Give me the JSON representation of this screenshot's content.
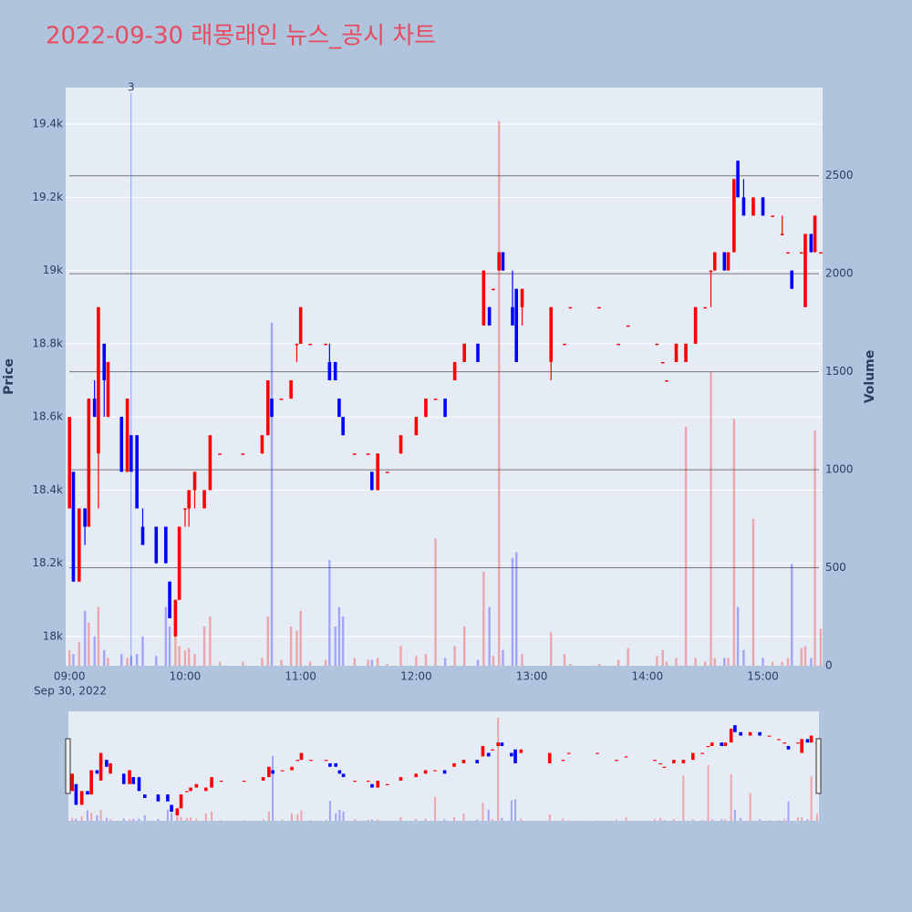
{
  "chart_data": {
    "type": "candlestick",
    "title": "2022-09-30 래몽래인 뉴스_공시 차트",
    "ylabel": "Price",
    "y2label": "Volume",
    "date_label": "Sep 30, 2022",
    "increasing_color": "#ff0000",
    "decreasing_color": "#0000ff",
    "annotation": {
      "x": "09:32",
      "text": "3"
    },
    "xlim": [
      "08:58",
      "15:31"
    ],
    "xticks": [
      "09:00",
      "10:00",
      "11:00",
      "12:00",
      "13:00",
      "14:00",
      "15:00"
    ],
    "ylim": [
      17920,
      19500
    ],
    "yticks": [
      {
        "value": 18000,
        "label": "18k"
      },
      {
        "value": 18200,
        "label": "18.2k"
      },
      {
        "value": 18400,
        "label": "18.4k"
      },
      {
        "value": 18600,
        "label": "18.6k"
      },
      {
        "value": 18800,
        "label": "18.8k"
      },
      {
        "value": 19000,
        "label": "19k"
      },
      {
        "value": 19200,
        "label": "19.2k"
      },
      {
        "value": 19400,
        "label": "19.4k"
      }
    ],
    "y2lim": [
      0,
      2950
    ],
    "y2ticks": [
      0,
      500,
      1000,
      1500,
      2000,
      2500
    ],
    "x": [
      "09:00",
      "09:02",
      "09:05",
      "09:08",
      "09:10",
      "09:13",
      "09:15",
      "09:18",
      "09:20",
      "09:27",
      "09:30",
      "09:32",
      "09:35",
      "09:38",
      "09:45",
      "09:50",
      "09:52",
      "09:55",
      "09:57",
      "10:00",
      "10:02",
      "10:05",
      "10:10",
      "10:13",
      "10:18",
      "10:30",
      "10:40",
      "10:43",
      "10:45",
      "10:50",
      "10:55",
      "10:58",
      "11:00",
      "11:05",
      "11:13",
      "11:15",
      "11:18",
      "11:20",
      "11:22",
      "11:28",
      "11:35",
      "11:37",
      "11:40",
      "11:45",
      "11:52",
      "12:00",
      "12:05",
      "12:10",
      "12:15",
      "12:20",
      "12:25",
      "12:32",
      "12:35",
      "12:38",
      "12:40",
      "12:43",
      "12:45",
      "12:50",
      "12:52",
      "12:55",
      "13:10",
      "13:17",
      "13:20",
      "13:35",
      "13:45",
      "13:50",
      "14:05",
      "14:08",
      "14:10",
      "14:15",
      "14:20",
      "14:25",
      "14:30",
      "14:33",
      "14:35",
      "14:40",
      "14:42",
      "14:45",
      "14:47",
      "14:50",
      "14:55",
      "15:00",
      "15:05",
      "15:10",
      "15:13",
      "15:15",
      "15:20",
      "15:22",
      "15:25",
      "15:27",
      "15:30"
    ],
    "open": [
      18350,
      18450,
      18150,
      18350,
      18300,
      18650,
      18500,
      18800,
      18600,
      18600,
      18450,
      18550,
      18550,
      18300,
      18300,
      18300,
      18150,
      18000,
      18100,
      18350,
      18350,
      18400,
      18350,
      18400,
      18500,
      18500,
      18500,
      18550,
      18650,
      18650,
      18650,
      18800,
      18800,
      18800,
      18800,
      18750,
      18750,
      18650,
      18600,
      18500,
      18500,
      18450,
      18400,
      18450,
      18500,
      18550,
      18600,
      18650,
      18650,
      18700,
      18750,
      18800,
      18850,
      18900,
      18950,
      19000,
      19050,
      18900,
      18950,
      18900,
      18750,
      18800,
      18900,
      18900,
      18800,
      18850,
      18800,
      18750,
      18700,
      18750,
      18750,
      18800,
      18900,
      19000,
      19000,
      19050,
      19000,
      19050,
      19300,
      19200,
      19150,
      19200,
      19150,
      19100,
      19050,
      19000,
      19050,
      18900,
      19100,
      19050,
      19050
    ],
    "high": [
      18600,
      18450,
      18350,
      18350,
      18650,
      18700,
      18900,
      18800,
      18750,
      18600,
      18650,
      18550,
      18550,
      18350,
      18300,
      18300,
      18150,
      18100,
      18300,
      18350,
      18400,
      18450,
      18400,
      18550,
      18500,
      18500,
      18550,
      18700,
      18650,
      18650,
      18700,
      18800,
      18900,
      18800,
      18800,
      18800,
      18750,
      18650,
      18600,
      18500,
      18500,
      18450,
      18500,
      18450,
      18550,
      18600,
      18650,
      18650,
      18650,
      18750,
      18800,
      18800,
      19000,
      18900,
      18950,
      19050,
      19050,
      19000,
      18950,
      18950,
      18900,
      18800,
      18900,
      18900,
      18800,
      18850,
      18800,
      18750,
      18700,
      18800,
      18800,
      18900,
      18900,
      19000,
      19050,
      19050,
      19050,
      19250,
      19300,
      19250,
      19200,
      19200,
      19150,
      19150,
      19050,
      19000,
      19050,
      19100,
      19100,
      19150,
      19050
    ],
    "low": [
      18350,
      18150,
      18150,
      18250,
      18300,
      18600,
      18350,
      18600,
      18600,
      18450,
      18450,
      18450,
      18350,
      18250,
      18200,
      18200,
      18050,
      18000,
      18100,
      18300,
      18300,
      18350,
      18350,
      18400,
      18500,
      18500,
      18500,
      18550,
      18600,
      18650,
      18650,
      18750,
      18800,
      18800,
      18800,
      18700,
      18700,
      18600,
      18550,
      18500,
      18500,
      18400,
      18400,
      18450,
      18500,
      18550,
      18600,
      18650,
      18600,
      18700,
      18750,
      18750,
      18850,
      18850,
      18950,
      19000,
      19000,
      18850,
      18750,
      18850,
      18700,
      18800,
      18900,
      18900,
      18800,
      18850,
      18800,
      18750,
      18700,
      18750,
      18750,
      18800,
      18900,
      18900,
      19000,
      19000,
      19000,
      19050,
      19200,
      19150,
      19150,
      19150,
      19150,
      19100,
      19050,
      18950,
      19050,
      18900,
      19050,
      19050,
      19050
    ],
    "close": [
      18600,
      18150,
      18350,
      18300,
      18650,
      18600,
      18900,
      18700,
      18750,
      18450,
      18650,
      18450,
      18350,
      18250,
      18200,
      18200,
      18050,
      18100,
      18300,
      18350,
      18400,
      18450,
      18400,
      18550,
      18500,
      18500,
      18550,
      18700,
      18600,
      18650,
      18700,
      18800,
      18900,
      18800,
      18800,
      18700,
      18700,
      18600,
      18550,
      18500,
      18500,
      18400,
      18500,
      18450,
      18550,
      18600,
      18650,
      18650,
      18600,
      18750,
      18800,
      18750,
      19000,
      18850,
      18950,
      19050,
      19000,
      18850,
      18750,
      18950,
      18900,
      18800,
      18900,
      18900,
      18800,
      18850,
      18800,
      18750,
      18700,
      18800,
      18800,
      18900,
      18900,
      19000,
      19050,
      19000,
      19050,
      19250,
      19200,
      19150,
      19200,
      19150,
      19150,
      19100,
      19050,
      18950,
      19050,
      19100,
      19050,
      19150,
      19050
    ],
    "volume": [
      80,
      60,
      120,
      280,
      220,
      150,
      300,
      80,
      40,
      60,
      40,
      50,
      60,
      150,
      50,
      300,
      200,
      150,
      100,
      80,
      90,
      60,
      200,
      250,
      20,
      20,
      40,
      250,
      1750,
      30,
      200,
      180,
      280,
      20,
      30,
      540,
      200,
      300,
      250,
      40,
      30,
      30,
      40,
      10,
      100,
      50,
      60,
      650,
      40,
      100,
      200,
      30,
      480,
      300,
      50,
      2780,
      80,
      550,
      580,
      60,
      170,
      60,
      10,
      10,
      30,
      90,
      50,
      80,
      20,
      40,
      1220,
      40,
      20,
      1500,
      40,
      40,
      40,
      1260,
      300,
      80,
      750,
      40,
      20,
      20,
      40,
      520,
      90,
      100,
      40,
      1200,
      190
    ]
  }
}
